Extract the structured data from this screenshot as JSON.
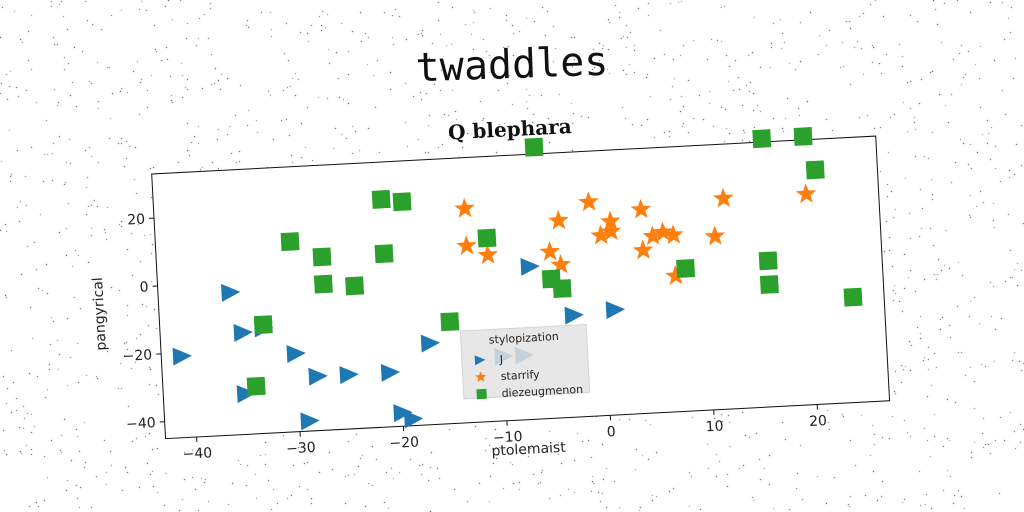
{
  "suptitle": "twaddles",
  "chart_data": {
    "type": "scatter",
    "title": "Q blephara",
    "xlabel": "ptolemaist",
    "ylabel": "pangyrical",
    "xlim": [
      -43,
      27
    ],
    "ylim": [
      -45,
      33
    ],
    "xticks": [
      -40,
      -30,
      -20,
      -10,
      0,
      10,
      20
    ],
    "yticks": [
      -40,
      -20,
      0,
      20
    ],
    "grid": false,
    "legend": {
      "title": "stylopization",
      "placement": "lower-center"
    },
    "series": [
      {
        "name": "J",
        "marker": "triangle-right",
        "color": "#1f77b4",
        "points": [
          [
            -41,
            -21
          ],
          [
            -36,
            -3
          ],
          [
            -35,
            -15
          ],
          [
            -35,
            -33
          ],
          [
            -33,
            -14
          ],
          [
            -30,
            -22
          ],
          [
            -29,
            -42
          ],
          [
            -28,
            -29
          ],
          [
            -25,
            -29
          ],
          [
            -21,
            -29
          ],
          [
            -20,
            -41
          ],
          [
            -19,
            -43
          ],
          [
            -17,
            -21
          ],
          [
            -10,
            -26
          ],
          [
            -8,
            -26
          ],
          [
            -7,
            0
          ],
          [
            -3,
            -15
          ],
          [
            1,
            -14
          ]
        ]
      },
      {
        "name": "starrify",
        "marker": "star",
        "color": "#ff7f0e",
        "points": [
          [
            -13,
            7
          ],
          [
            -13,
            18
          ],
          [
            -11,
            4
          ],
          [
            -5,
            4
          ],
          [
            -4,
            13
          ],
          [
            -4,
            0
          ],
          [
            -1,
            18
          ],
          [
            0,
            8
          ],
          [
            1,
            9
          ],
          [
            1,
            12
          ],
          [
            4,
            3
          ],
          [
            4,
            15
          ],
          [
            5,
            7
          ],
          [
            6,
            8
          ],
          [
            7,
            7
          ],
          [
            7,
            -5
          ],
          [
            11,
            6
          ],
          [
            12,
            17
          ],
          [
            20,
            17
          ]
        ]
      },
      {
        "name": "diezeugmenon",
        "marker": "square",
        "color": "#2ca02c",
        "points": [
          [
            -33,
            -13
          ],
          [
            -34,
            -31
          ],
          [
            -30,
            11
          ],
          [
            -27,
            6
          ],
          [
            -27,
            -2
          ],
          [
            -24,
            -3
          ],
          [
            -21,
            22
          ],
          [
            -21,
            6
          ],
          [
            -19,
            21
          ],
          [
            -15,
            -15
          ],
          [
            -11,
            9
          ],
          [
            -5,
            -4
          ],
          [
            -4,
            -7
          ],
          [
            -6,
            35
          ],
          [
            8,
            -3
          ],
          [
            16,
            34
          ],
          [
            16,
            -2
          ],
          [
            16,
            -9
          ],
          [
            20,
            34
          ],
          [
            21,
            24
          ],
          [
            24,
            -14
          ]
        ]
      }
    ]
  }
}
